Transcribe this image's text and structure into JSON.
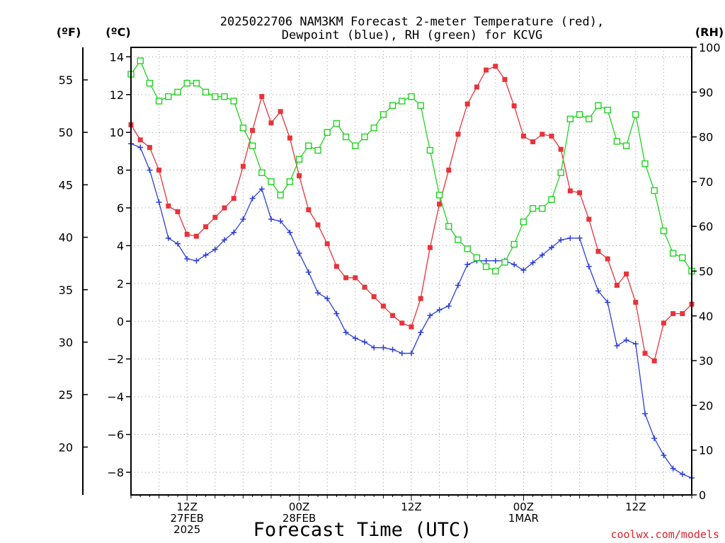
{
  "chart_data": {
    "type": "line",
    "title_line1": "2025022706 NAM3KM Forecast 2-meter Temperature (red),",
    "title_line2": "Dewpoint (blue), RH (green) for KCVG",
    "unit_left_f": "(ºF)",
    "unit_left_c": "(ºC)",
    "unit_right": "(RH)",
    "xlabel": "Forecast Time (UTC)",
    "credit": "coolwx.com/models",
    "x_start_hour": 6,
    "x_end_hour": 66,
    "x_ticks": [
      {
        "hour": 12,
        "lines": [
          "12Z",
          "27FEB",
          "2025"
        ]
      },
      {
        "hour": 24,
        "lines": [
          "00Z",
          "28FEB"
        ]
      },
      {
        "hour": 36,
        "lines": [
          "12Z"
        ]
      },
      {
        "hour": 48,
        "lines": [
          "00Z",
          "1MAR"
        ]
      },
      {
        "hour": 60,
        "lines": [
          "12Z"
        ]
      }
    ],
    "ylim_c": [
      -9.2,
      14.5
    ],
    "y_ticks_c": [
      "14",
      "12",
      "10",
      "8",
      "6",
      "4",
      "2",
      "0",
      "−2",
      "−4",
      "−6",
      "−8"
    ],
    "y_ticks_f": [
      "55",
      "50",
      "45",
      "40",
      "35",
      "30",
      "25",
      "20"
    ],
    "ylim_rh": [
      0,
      100
    ],
    "y_ticks_rh": [
      "100",
      "90",
      "80",
      "70",
      "60",
      "50",
      "40",
      "30",
      "20",
      "10",
      "0"
    ],
    "colors": {
      "temperature": "#e8333a",
      "dewpoint": "#2b3fd8",
      "rh": "#1fd31f"
    },
    "series": [
      {
        "key": "temperature",
        "axis": "c",
        "values": [
          10.4,
          9.6,
          9.2,
          8.0,
          6.1,
          5.8,
          4.6,
          4.5,
          5.0,
          5.5,
          6.0,
          6.5,
          8.2,
          10.1,
          11.9,
          10.5,
          11.1,
          9.7,
          7.7,
          5.9,
          5.1,
          4.1,
          2.9,
          2.3,
          2.3,
          1.8,
          1.3,
          0.8,
          0.3,
          -0.1,
          -0.3,
          1.2,
          3.9,
          6.2,
          8.0,
          9.9,
          11.5,
          12.4,
          13.3,
          13.5,
          12.8,
          11.4,
          9.8,
          9.5,
          9.9,
          9.8,
          9.1,
          6.9,
          6.8,
          5.4,
          3.7,
          3.3,
          1.9,
          2.5,
          1.0,
          -1.7,
          -2.1,
          -0.1,
          0.4,
          0.4,
          0.9
        ]
      },
      {
        "key": "dewpoint",
        "axis": "c",
        "values": [
          9.4,
          9.2,
          8.0,
          6.3,
          4.4,
          4.1,
          3.3,
          3.2,
          3.5,
          3.8,
          4.3,
          4.7,
          5.4,
          6.5,
          7.0,
          5.4,
          5.3,
          4.7,
          3.6,
          2.6,
          1.5,
          1.2,
          0.4,
          -0.6,
          -0.9,
          -1.1,
          -1.4,
          -1.4,
          -1.5,
          -1.7,
          -1.7,
          -0.6,
          0.3,
          0.6,
          0.8,
          1.9,
          3.0,
          3.2,
          3.2,
          3.2,
          3.2,
          3.0,
          2.7,
          3.1,
          3.5,
          3.9,
          4.3,
          4.4,
          4.4,
          2.9,
          1.6,
          1.0,
          -1.3,
          -1.0,
          -1.2,
          -4.9,
          -6.2,
          -7.1,
          -7.8,
          -8.1,
          -8.3
        ]
      },
      {
        "key": "rh",
        "axis": "rh",
        "values": [
          94,
          97,
          92,
          88,
          89,
          90,
          92,
          92,
          90,
          89,
          89,
          88,
          82,
          78,
          72,
          70,
          67,
          70,
          75,
          78,
          77,
          81,
          83,
          80,
          78,
          80,
          82,
          85,
          87,
          88,
          89,
          87,
          77,
          67,
          60,
          57,
          55,
          53,
          51,
          50,
          52,
          56,
          61,
          64,
          64,
          66,
          72,
          84,
          85,
          84,
          87,
          86,
          79,
          78,
          85,
          74,
          68,
          59,
          54,
          53,
          50
        ]
      }
    ]
  }
}
